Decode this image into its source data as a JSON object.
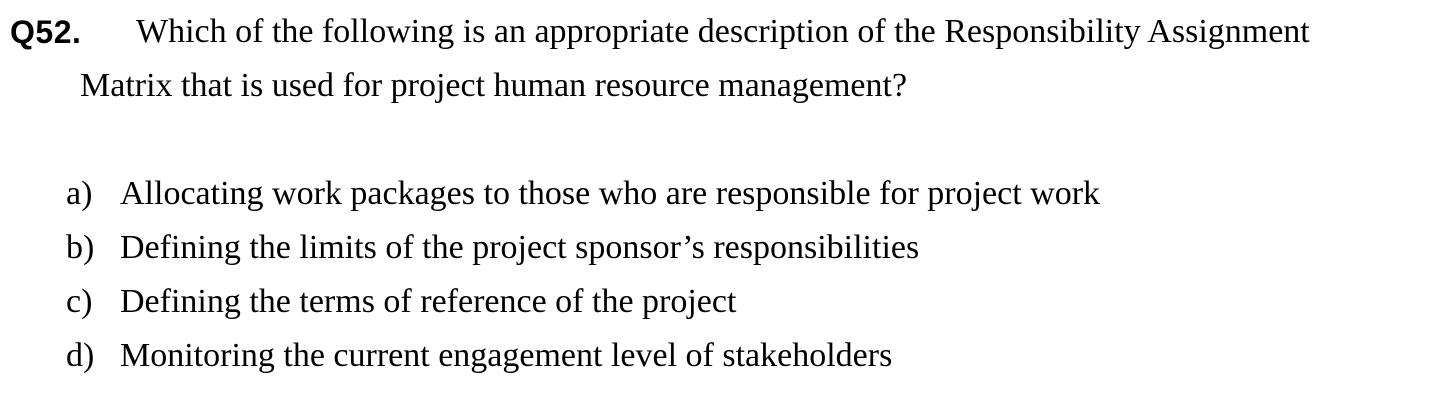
{
  "question": {
    "number": "Q52.",
    "text_line1": "Which of the following is an appropriate description of the Responsibility Assignment",
    "text_line2": "Matrix that is used for project human resource management?"
  },
  "options": [
    {
      "letter": "a)",
      "text": "Allocating work packages to those who are responsible for project work"
    },
    {
      "letter": "b)",
      "text": "Defining the limits of the project sponsor’s responsibilities"
    },
    {
      "letter": "c)",
      "text": "Defining the terms of reference of the project"
    },
    {
      "letter": "d)",
      "text": "Monitoring the current engagement level of stakeholders"
    }
  ]
}
